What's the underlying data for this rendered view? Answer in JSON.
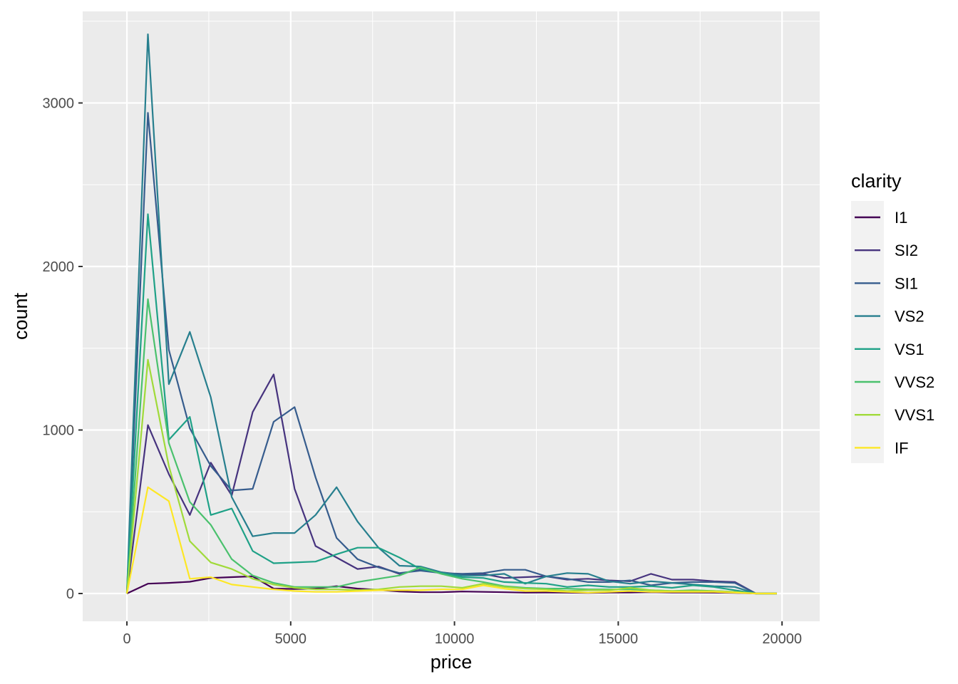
{
  "chart_data": {
    "type": "line",
    "title": "",
    "xlabel": "price",
    "ylabel": "count",
    "xlim": [
      -1350,
      21150
    ],
    "ylim": [
      -170,
      3560
    ],
    "x_ticks": [
      0,
      5000,
      10000,
      15000,
      20000
    ],
    "x_tick_labels": [
      "0",
      "5000",
      "10000",
      "15000",
      "20000"
    ],
    "y_ticks": [
      0,
      1000,
      2000,
      3000
    ],
    "y_tick_labels": [
      "0",
      "1000",
      "2000",
      "3000"
    ],
    "grid": true,
    "legend": {
      "title": "clarity",
      "position": "right"
    },
    "x": [
      0,
      640,
      1280,
      1920,
      2560,
      3200,
      3840,
      4480,
      5120,
      5760,
      6400,
      7040,
      7680,
      8320,
      8960,
      9600,
      10240,
      10880,
      11520,
      12160,
      12800,
      13440,
      14080,
      14720,
      15360,
      16000,
      16640,
      17280,
      17920,
      18560,
      19200,
      19840
    ],
    "series": [
      {
        "name": "I1",
        "color": "#440154",
        "values": [
          0,
          60,
          65,
          72,
          95,
          100,
          105,
          30,
          28,
          30,
          45,
          30,
          22,
          12,
          8,
          8,
          12,
          10,
          8,
          5,
          6,
          5,
          4,
          6,
          6,
          8,
          6,
          6,
          5,
          4,
          0,
          0
        ]
      },
      {
        "name": "SI2",
        "color": "#46337E",
        "values": [
          0,
          1030,
          730,
          480,
          800,
          600,
          1110,
          1340,
          640,
          290,
          220,
          150,
          165,
          120,
          145,
          130,
          115,
          120,
          95,
          100,
          105,
          85,
          90,
          80,
          75,
          120,
          85,
          85,
          75,
          70,
          0,
          0
        ]
      },
      {
        "name": "SI1",
        "color": "#365C8D",
        "values": [
          0,
          2940,
          1490,
          1010,
          780,
          630,
          640,
          1050,
          1140,
          710,
          340,
          210,
          160,
          125,
          140,
          125,
          120,
          125,
          145,
          145,
          105,
          90,
          70,
          70,
          80,
          50,
          65,
          70,
          70,
          65,
          0,
          0
        ]
      },
      {
        "name": "VS2",
        "color": "#277F8E",
        "values": [
          0,
          3420,
          1280,
          1600,
          1200,
          590,
          350,
          370,
          370,
          480,
          650,
          440,
          280,
          170,
          165,
          130,
          110,
          110,
          120,
          60,
          105,
          125,
          120,
          75,
          60,
          75,
          65,
          55,
          45,
          40,
          0,
          0
        ]
      },
      {
        "name": "VS1",
        "color": "#1FA187",
        "values": [
          0,
          2320,
          940,
          1080,
          480,
          520,
          260,
          185,
          190,
          195,
          240,
          280,
          280,
          220,
          150,
          125,
          100,
          95,
          70,
          65,
          60,
          40,
          50,
          40,
          40,
          45,
          35,
          50,
          40,
          20,
          0,
          0
        ]
      },
      {
        "name": "VVS2",
        "color": "#4AC16D",
        "values": [
          0,
          1800,
          920,
          560,
          420,
          210,
          110,
          65,
          40,
          40,
          40,
          70,
          90,
          110,
          160,
          120,
          90,
          70,
          45,
          35,
          30,
          30,
          25,
          25,
          25,
          20,
          15,
          20,
          15,
          10,
          0,
          0
        ]
      },
      {
        "name": "VVS1",
        "color": "#A0DA39",
        "values": [
          0,
          1430,
          780,
          320,
          190,
          150,
          90,
          55,
          35,
          25,
          25,
          20,
          25,
          40,
          45,
          45,
          35,
          60,
          40,
          30,
          25,
          15,
          20,
          20,
          35,
          20,
          15,
          15,
          15,
          10,
          0,
          0
        ]
      },
      {
        "name": "IF",
        "color": "#FDE725",
        "values": [
          0,
          650,
          565,
          90,
          100,
          55,
          40,
          25,
          15,
          10,
          10,
          15,
          20,
          20,
          20,
          25,
          25,
          50,
          30,
          15,
          15,
          10,
          5,
          10,
          15,
          10,
          10,
          10,
          10,
          5,
          0,
          0
        ]
      }
    ]
  }
}
